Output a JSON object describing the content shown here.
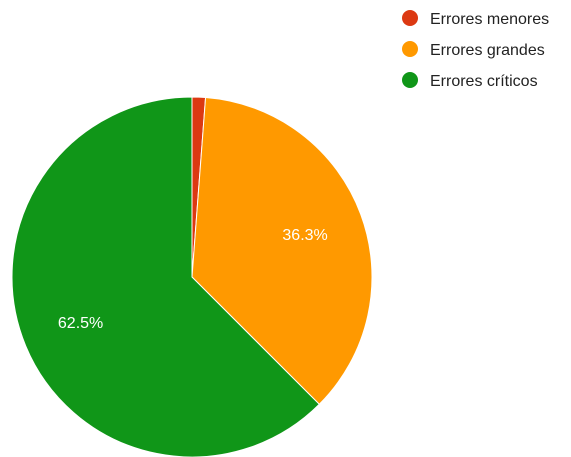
{
  "chart_data": {
    "type": "pie",
    "title": "",
    "slices": [
      {
        "label": "Errores menores",
        "value": 1.2,
        "color": "#dc3912",
        "data_label": ""
      },
      {
        "label": "Errores grandes",
        "value": 36.3,
        "color": "#ff9900",
        "data_label": "36.3%"
      },
      {
        "label": "Errores críticos",
        "value": 62.5,
        "color": "#109618",
        "data_label": "62.5%"
      }
    ],
    "legend_position": "top-right"
  }
}
